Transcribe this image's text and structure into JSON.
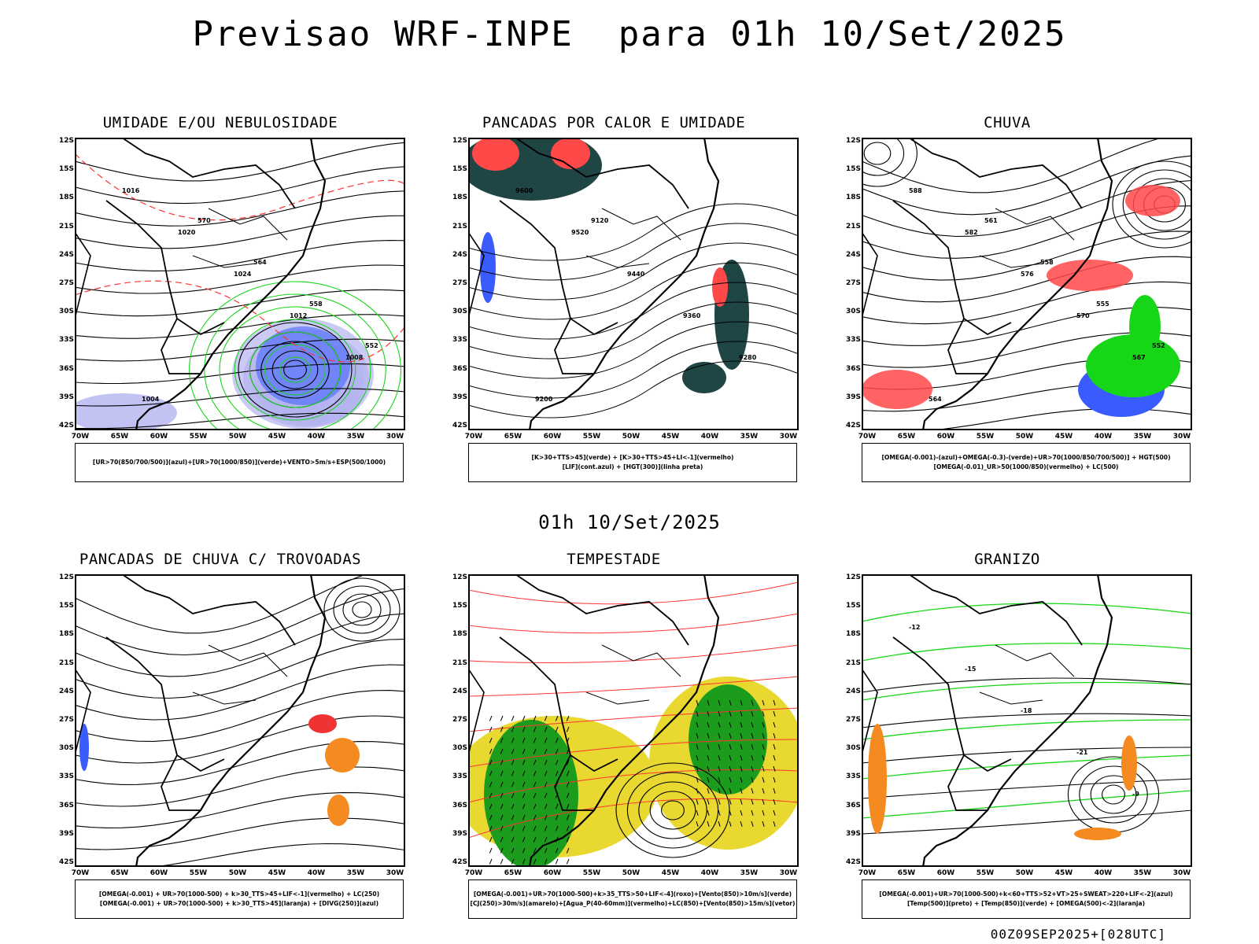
{
  "header": {
    "title": "Previsao WRF-INPE  para 01h 10/Set/2025"
  },
  "middle_title": "01h 10/Set/2025",
  "footer": "00Z09SEP2025+[028UTC]",
  "axes": {
    "lat_labels": [
      "12S",
      "15S",
      "18S",
      "21S",
      "24S",
      "27S",
      "30S",
      "33S",
      "36S",
      "39S",
      "42S"
    ],
    "lon_labels": [
      "70W",
      "65W",
      "60W",
      "55W",
      "50W",
      "45W",
      "40W",
      "35W",
      "30W"
    ]
  },
  "panels": [
    {
      "title": "UMIDADE E/OU NEBULOSIDADE",
      "legend": [
        "[UR>70(850/700/500)](azul)+[UR>70(1000/850)](verde)+VENTO>5m/s+ESP(500/1000)"
      ],
      "contour_labels": [
        "1016",
        "1020",
        "1024",
        "1012",
        "1008",
        "1004",
        "570",
        "564",
        "558",
        "552"
      ]
    },
    {
      "title": "PANCADAS POR CALOR E UMIDADE",
      "legend": [
        "[K>30+TTS>45](verde) + [K>30+TTS>45+LI<-1](vermelho)",
        "[LIF](cont.azul) + [HGT(300)](linha preta)"
      ],
      "contour_labels": [
        "9600",
        "9520",
        "9440",
        "9360",
        "9280",
        "9200",
        "9120"
      ]
    },
    {
      "title": "CHUVA",
      "legend": [
        "[OMEGA(-0.001)-(azul)+OMEGA(-0.3)-(verde)+UR>70(1000/850/700/500)] + HGT(500)",
        "[OMEGA(-0.01)_UR>50(1000/850)(vermelho) + LC(500)"
      ],
      "contour_labels": [
        "588",
        "582",
        "576",
        "570",
        "567",
        "564",
        "561",
        "558",
        "555",
        "552"
      ]
    },
    {
      "title": "PANCADAS DE CHUVA C/ TROVOADAS",
      "legend": [
        "[OMEGA(-0.001) + UR>70(1000-500) + k>30_TTS>45+LIF<-1](vermelho) + LC(250)",
        "[OMEGA(-0.001) + UR>70(1000-500) + k>30_TTS>45](laranja) + [DIVG(250)](azul)"
      ],
      "contour_labels": []
    },
    {
      "title": "TEMPESTADE",
      "legend": [
        "[OMEGA(-0.001)+UR>70(1000-500)+k>35_TTS>50+LIF<-4](roxo)+[Vento(850)>10m/s](verde)",
        "[CJ(250)>30m/s](amarelo)+[Agua_P(40-60mm)](vermelho)+LC(850)+[Vento(850)>15m/s](vetor)"
      ],
      "contour_labels": []
    },
    {
      "title": "GRANIZO",
      "legend": [
        "[OMEGA(-0.001)+UR>70(1000-500)+k<60+TTS>52+VT>25+SWEAT>220+LIF<-2](azul)",
        "[Temp(500)](preto) + [Temp(850)](verde) + [OMEGA(500)<-2](laranja)"
      ],
      "contour_labels": [
        "-12",
        "-15",
        "-18",
        "-21",
        "-9"
      ]
    }
  ],
  "colors": {
    "blue": "#3a5cff",
    "green": "#17d617",
    "red": "#ff4848",
    "dark_teal": "#1f4545",
    "lavender": "#b4b4f0",
    "orange": "#f58a20",
    "yellow": "#e8d830",
    "dark_green": "#1c9c1c"
  }
}
